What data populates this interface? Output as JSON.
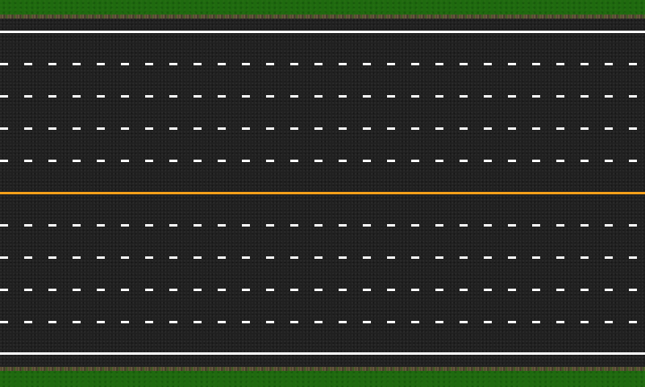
{
  "scene": {
    "type": "top-down-road",
    "direction": "horizontal",
    "lanes_per_direction": 5,
    "colors": {
      "grass": "#1f6a0f",
      "asphalt": "#202020",
      "edge_line": "#ffffff",
      "lane_dash": "#ffffff",
      "center_line": "#f5a01a"
    }
  }
}
